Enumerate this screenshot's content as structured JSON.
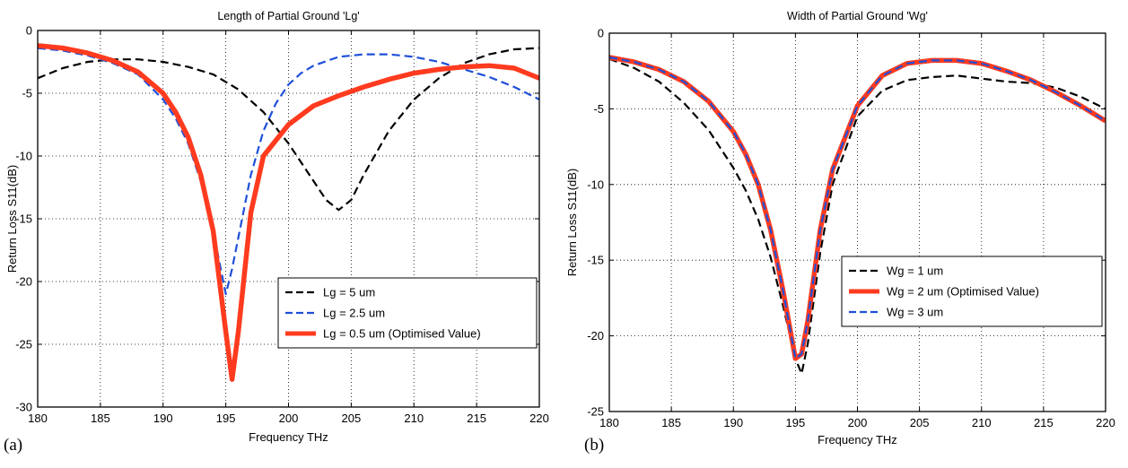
{
  "chart_data": [
    {
      "type": "line",
      "panel_label": "(a)",
      "title": "Length of Partial Ground 'Lg'",
      "xlabel": "Frequency THz",
      "ylabel": "Return Loss S11(dB)",
      "xlim": [
        180,
        220
      ],
      "ylim": [
        -30,
        0
      ],
      "xticks": [
        180,
        185,
        190,
        195,
        200,
        205,
        210,
        215,
        220
      ],
      "yticks": [
        0,
        -5,
        -10,
        -15,
        -20,
        -25,
        -30
      ],
      "grid": true,
      "legend_position": "lower-right",
      "series": [
        {
          "name": "Lg = 5 um",
          "color": "#000000",
          "style": "dashed",
          "x": [
            180,
            182,
            184,
            186,
            188,
            190,
            192,
            194,
            196,
            198,
            200,
            201,
            202,
            203,
            204,
            205,
            206,
            208,
            210,
            212,
            214,
            216,
            218,
            220
          ],
          "y": [
            -3.8,
            -3.0,
            -2.5,
            -2.3,
            -2.3,
            -2.5,
            -2.9,
            -3.5,
            -4.7,
            -6.5,
            -9.0,
            -10.5,
            -12.0,
            -13.5,
            -14.3,
            -13.5,
            -11.5,
            -8.0,
            -5.5,
            -3.8,
            -2.6,
            -1.9,
            -1.5,
            -1.4
          ]
        },
        {
          "name": "Lg = 2.5 um",
          "color": "#1f4fd8",
          "style": "dashed",
          "x": [
            180,
            182,
            184,
            186,
            188,
            190,
            191,
            192,
            193,
            194,
            195,
            195.5,
            196,
            197,
            198,
            199,
            200,
            201,
            202,
            204,
            206,
            208,
            210,
            212,
            214,
            216,
            218,
            220
          ],
          "y": [
            -1.4,
            -1.6,
            -2.0,
            -2.6,
            -3.5,
            -5.5,
            -7.0,
            -9.0,
            -12.0,
            -16.0,
            -21.0,
            -19.0,
            -16.5,
            -11.5,
            -8.0,
            -5.8,
            -4.3,
            -3.4,
            -2.8,
            -2.1,
            -1.9,
            -1.9,
            -2.1,
            -2.5,
            -3.1,
            -3.7,
            -4.5,
            -5.5
          ]
        },
        {
          "name": "Lg = 0.5 um (Optimised Value)",
          "color": "#ff3b1f",
          "style": "solid",
          "x": [
            180,
            182,
            184,
            186,
            188,
            190,
            191,
            192,
            193,
            194,
            195,
            195.5,
            196,
            197,
            198,
            200,
            202,
            204,
            206,
            208,
            210,
            212,
            214,
            216,
            218,
            220
          ],
          "y": [
            -1.2,
            -1.4,
            -1.8,
            -2.4,
            -3.3,
            -5.0,
            -6.5,
            -8.5,
            -11.5,
            -16.0,
            -24.0,
            -27.8,
            -24.0,
            -14.5,
            -10.0,
            -7.5,
            -6.0,
            -5.2,
            -4.5,
            -3.9,
            -3.4,
            -3.1,
            -2.9,
            -2.8,
            -3.0,
            -3.8
          ]
        }
      ]
    },
    {
      "type": "line",
      "panel_label": "(b)",
      "title": "Width of Partial Ground 'Wg'",
      "xlabel": "Frequency THz",
      "ylabel": "Return Loss S11(dB)",
      "xlim": [
        180,
        220
      ],
      "ylim": [
        -25,
        0
      ],
      "xticks": [
        180,
        185,
        190,
        195,
        200,
        205,
        210,
        215,
        220
      ],
      "yticks": [
        0,
        -5,
        -10,
        -15,
        -20,
        -25
      ],
      "grid": true,
      "legend_position": "lower-right",
      "series": [
        {
          "name": "Wg = 1 um",
          "color": "#000000",
          "style": "dashed",
          "x": [
            180,
            182,
            184,
            186,
            188,
            190,
            191,
            192,
            193,
            194,
            195,
            195.5,
            196,
            197,
            198,
            200,
            202,
            204,
            206,
            208,
            210,
            212,
            214,
            216,
            218,
            220
          ],
          "y": [
            -1.7,
            -2.3,
            -3.2,
            -4.6,
            -6.4,
            -8.9,
            -10.4,
            -12.3,
            -14.8,
            -18.0,
            -21.5,
            -22.5,
            -20.5,
            -14.5,
            -10.0,
            -5.5,
            -3.8,
            -3.1,
            -2.9,
            -2.8,
            -3.0,
            -3.2,
            -3.3,
            -3.6,
            -4.2,
            -5.0
          ]
        },
        {
          "name": "Wg = 2 um (Optimised Value)",
          "color": "#ff3b1f",
          "style": "solid",
          "x": [
            180,
            182,
            184,
            186,
            188,
            190,
            191,
            192,
            193,
            194,
            195,
            195.5,
            196,
            197,
            198,
            200,
            202,
            204,
            206,
            208,
            210,
            212,
            214,
            216,
            218,
            220
          ],
          "y": [
            -1.6,
            -1.9,
            -2.4,
            -3.2,
            -4.5,
            -6.5,
            -8.0,
            -10.0,
            -13.0,
            -17.0,
            -21.5,
            -21.2,
            -19.0,
            -13.0,
            -9.0,
            -4.8,
            -2.8,
            -2.0,
            -1.8,
            -1.8,
            -2.0,
            -2.5,
            -3.1,
            -3.9,
            -4.8,
            -5.8
          ]
        },
        {
          "name": "Wg = 3 um",
          "color": "#1f4fd8",
          "style": "dashed",
          "x": [
            180,
            182,
            184,
            186,
            188,
            190,
            191,
            192,
            193,
            194,
            195,
            195.5,
            196,
            197,
            198,
            200,
            202,
            204,
            206,
            208,
            210,
            212,
            214,
            216,
            218,
            220
          ],
          "y": [
            -1.6,
            -1.9,
            -2.4,
            -3.2,
            -4.5,
            -6.5,
            -8.0,
            -10.0,
            -13.0,
            -17.0,
            -21.5,
            -21.2,
            -19.0,
            -13.0,
            -9.0,
            -4.8,
            -2.8,
            -2.0,
            -1.8,
            -1.8,
            -2.0,
            -2.5,
            -3.1,
            -3.9,
            -4.8,
            -5.8
          ]
        }
      ]
    }
  ]
}
